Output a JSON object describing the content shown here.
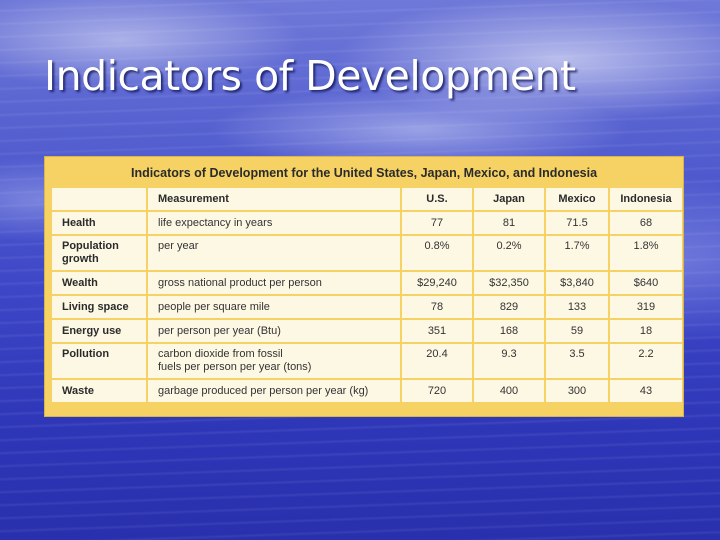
{
  "slide": {
    "title": "Indicators of Development"
  },
  "table": {
    "caption": "Indicators of Development for the United States, Japan, Mexico, and Indonesia",
    "headers": {
      "indicator": "",
      "measurement": "Measurement",
      "us": "U.S.",
      "japan": "Japan",
      "mexico": "Mexico",
      "indonesia": "Indonesia"
    },
    "rows": [
      {
        "indicator": "Health",
        "measurement": "life expectancy in years",
        "us": "77",
        "japan": "81",
        "mexico": "71.5",
        "indonesia": "68"
      },
      {
        "indicator": "Population\ngrowth",
        "measurement": "per year",
        "us": "0.8%",
        "japan": "0.2%",
        "mexico": "1.7%",
        "indonesia": "1.8%"
      },
      {
        "indicator": "Wealth",
        "measurement": "gross national product per person",
        "us": "$29,240",
        "japan": "$32,350",
        "mexico": "$3,840",
        "indonesia": "$640"
      },
      {
        "indicator": "Living space",
        "measurement": "people per square mile",
        "us": "78",
        "japan": "829",
        "mexico": "133",
        "indonesia": "319"
      },
      {
        "indicator": "Energy use",
        "measurement": "per person per year (Btu)",
        "us": "351",
        "japan": "168",
        "mexico": "59",
        "indonesia": "18"
      },
      {
        "indicator": "Pollution",
        "measurement": "carbon dioxide from fossil\nfuels per person per year (tons)",
        "us": "20.4",
        "japan": "9.3",
        "mexico": "3.5",
        "indonesia": "2.2"
      },
      {
        "indicator": "Waste",
        "measurement": "garbage produced per person per year (kg)",
        "us": "720",
        "japan": "400",
        "mexico": "300",
        "indonesia": "43"
      }
    ]
  },
  "colors": {
    "background": "#3c45c6",
    "table_frame": "#f6d264",
    "cell_fill": "#fdf8e4",
    "title_text": "#ffffff"
  }
}
